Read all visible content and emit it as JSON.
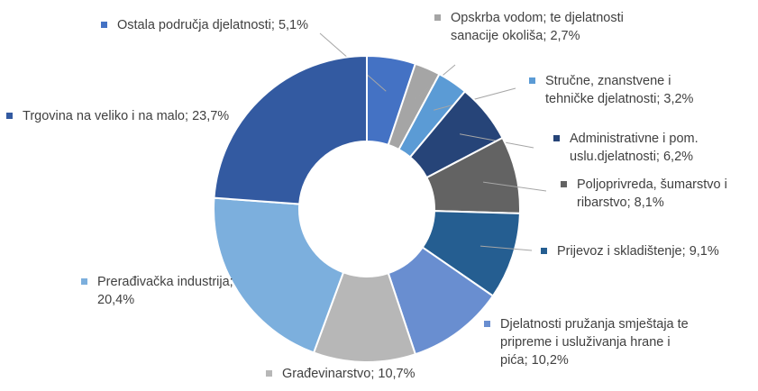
{
  "chart_data": {
    "type": "donut",
    "categories": [
      "Ostala područja djelatnosti;",
      "Opskrba vodom; te djelatnosti sanacije okoliša;",
      "Stručne, znanstvene i tehničke djelatnosti;",
      "Administrativne i pom. uslu.djelatnosti;",
      "Poljoprivreda, šumarstvo i ribarstvo;",
      "Prijevoz i skladištenje;",
      "Djelatnosti pružanja smještaja te pripreme i usluživanja hrane i pića;",
      "Građevinarstvo;",
      "Prerađivačka industrija;",
      "Trgovina na veliko i na malo;"
    ],
    "values": [
      5.1,
      2.7,
      3.2,
      6.2,
      8.1,
      9.1,
      10.2,
      10.7,
      20.4,
      23.7
    ],
    "value_labels": [
      "5,1%",
      "2,7%",
      "3,2%",
      "6,2%",
      "8,1%",
      "9,1%",
      "10,2%",
      "10,7%",
      "20,4%",
      "23,7%"
    ],
    "colors": [
      "#4472c4",
      "#a5a5a5",
      "#5b9bd5",
      "#264478",
      "#636363",
      "#255e91",
      "#698ed0",
      "#b7b7b7",
      "#7cafdd",
      "#335aa1"
    ]
  }
}
